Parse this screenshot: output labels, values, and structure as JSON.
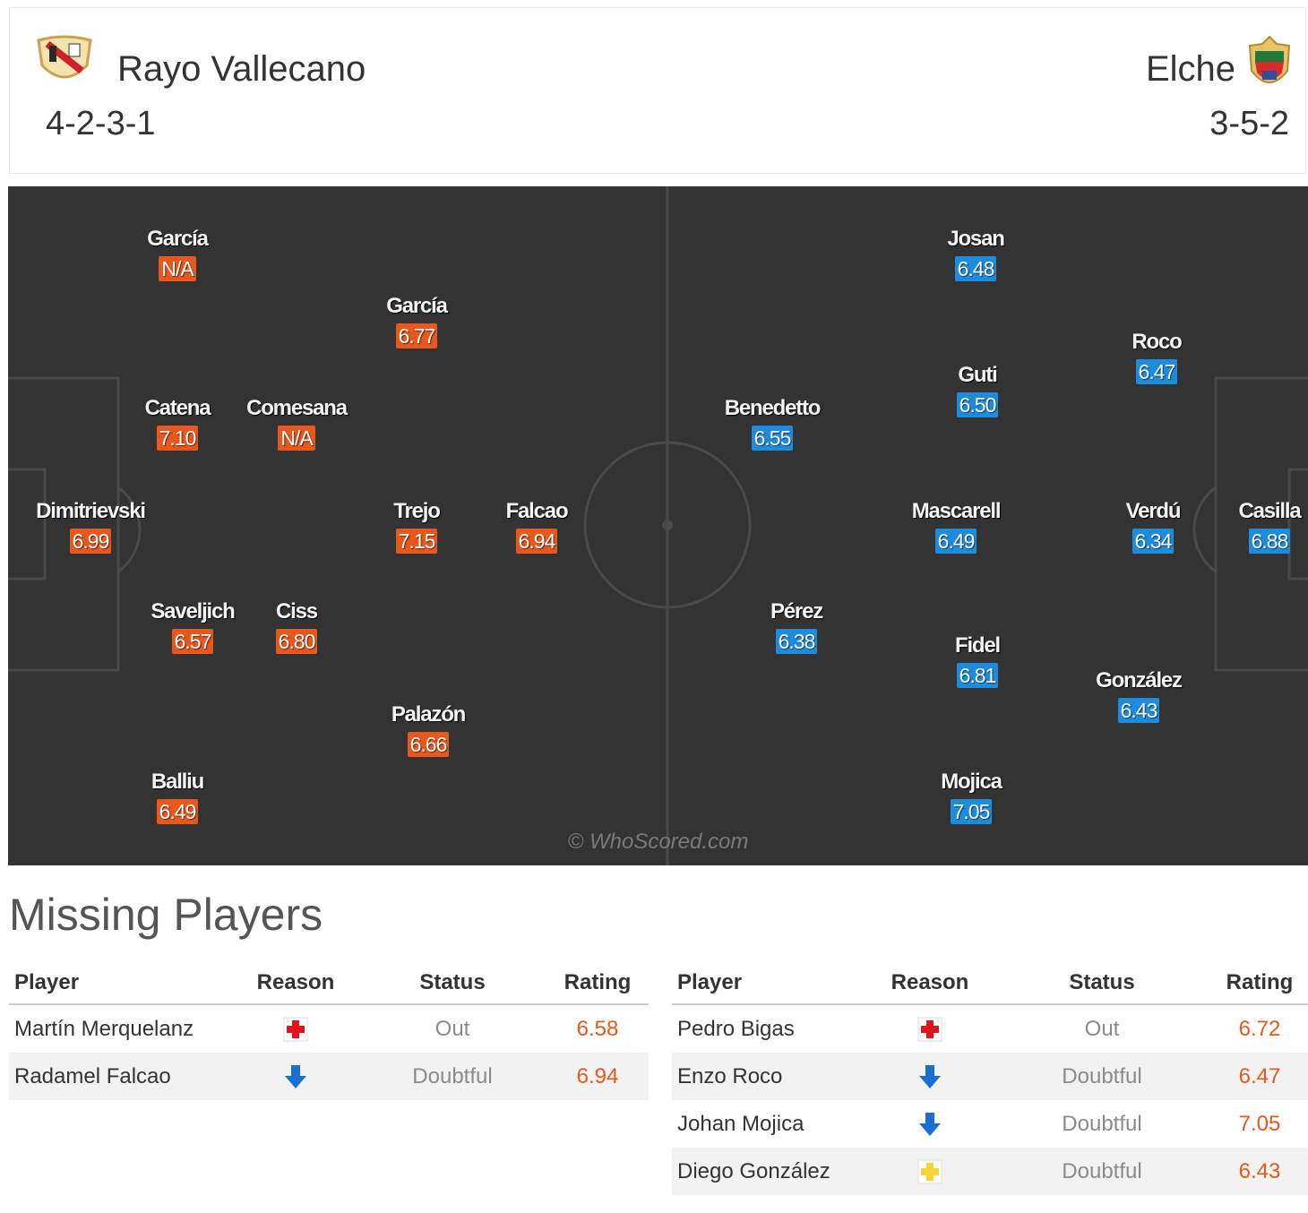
{
  "header": {
    "home": {
      "name": "Rayo Vallecano",
      "formation": "4-2-3-1"
    },
    "away": {
      "name": "Elche",
      "formation": "3-5-2"
    }
  },
  "pitch": {
    "home_players": [
      {
        "name": "García",
        "rating": "N/A"
      },
      {
        "name": "García",
        "rating": "6.77"
      },
      {
        "name": "Catena",
        "rating": "7.10"
      },
      {
        "name": "Comesana",
        "rating": "N/A"
      },
      {
        "name": "Dimitrievski",
        "rating": "6.99"
      },
      {
        "name": "Trejo",
        "rating": "7.15"
      },
      {
        "name": "Falcao",
        "rating": "6.94"
      },
      {
        "name": "Saveljich",
        "rating": "6.57"
      },
      {
        "name": "Ciss",
        "rating": "6.80"
      },
      {
        "name": "Palazón",
        "rating": "6.66"
      },
      {
        "name": "Balliu",
        "rating": "6.49"
      }
    ],
    "away_players": [
      {
        "name": "Josan",
        "rating": "6.48"
      },
      {
        "name": "Roco",
        "rating": "6.47"
      },
      {
        "name": "Guti",
        "rating": "6.50"
      },
      {
        "name": "Benedetto",
        "rating": "6.55"
      },
      {
        "name": "Mascarell",
        "rating": "6.49"
      },
      {
        "name": "Verdú",
        "rating": "6.34"
      },
      {
        "name": "Casilla",
        "rating": "6.88"
      },
      {
        "name": "Pérez",
        "rating": "6.38"
      },
      {
        "name": "Fidel",
        "rating": "6.81"
      },
      {
        "name": "González",
        "rating": "6.43"
      },
      {
        "name": "Mojica",
        "rating": "7.05"
      }
    ],
    "watermark": "© WhoScored.com"
  },
  "missing": {
    "title": "Missing Players",
    "columns": [
      "Player",
      "Reason",
      "Status",
      "Rating"
    ],
    "home": [
      {
        "player": "Martín Merquelanz",
        "reason_icon": "injury-icon",
        "status": "Out",
        "rating": "6.58"
      },
      {
        "player": "Radamel Falcao",
        "reason_icon": "doubtful-arrow-icon",
        "status": "Doubtful",
        "rating": "6.94"
      }
    ],
    "away": [
      {
        "player": "Pedro Bigas",
        "reason_icon": "injury-icon",
        "status": "Out",
        "rating": "6.72"
      },
      {
        "player": "Enzo Roco",
        "reason_icon": "doubtful-arrow-icon",
        "status": "Doubtful",
        "rating": "6.47"
      },
      {
        "player": "Johan Mojica",
        "reason_icon": "doubtful-arrow-icon",
        "status": "Doubtful",
        "rating": "7.05"
      },
      {
        "player": "Diego González",
        "reason_icon": "yellow-cross-icon",
        "status": "Doubtful",
        "rating": "6.43"
      }
    ]
  },
  "colors": {
    "home_rating": "#e8571c",
    "away_rating": "#1d8cdc",
    "pitch": "#333333",
    "missing_rating": "#e8571c"
  }
}
